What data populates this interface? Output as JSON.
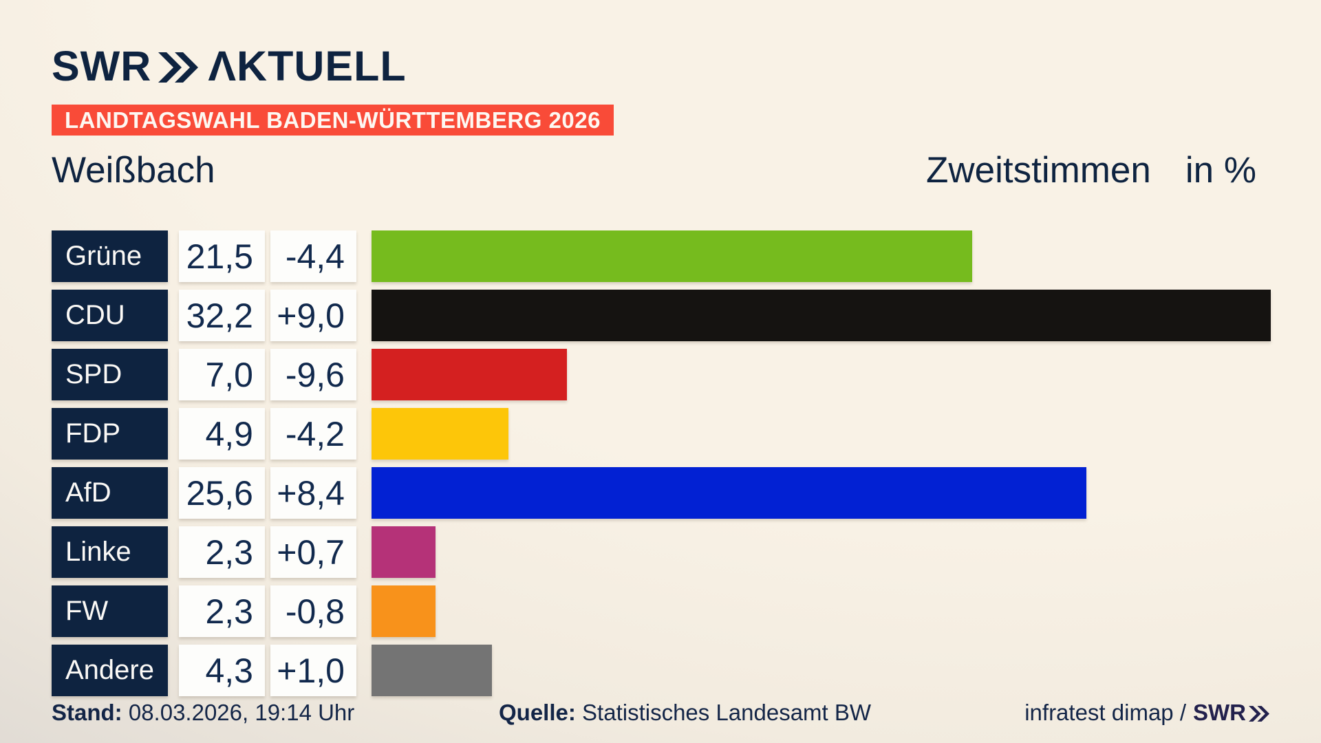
{
  "header": {
    "logo_swr": "SWR",
    "logo_aktuell": "ΛKTUELL",
    "badge": "LANDTAGSWAHL BADEN-WÜRTTEMBERG 2026",
    "location": "Weißbach",
    "chart_title": "Zweitstimmen",
    "chart_unit": "in %"
  },
  "chart_data": {
    "type": "bar",
    "orientation": "horizontal",
    "title": "Zweitstimmen",
    "unit": "in %",
    "categories": [
      "Grüne",
      "CDU",
      "SPD",
      "FDP",
      "AfD",
      "Linke",
      "FW",
      "Andere"
    ],
    "values": [
      21.5,
      32.2,
      7.0,
      4.9,
      25.6,
      2.3,
      2.3,
      4.3
    ],
    "value_labels": [
      "21,5",
      "32,2",
      "7,0",
      "4,9",
      "25,6",
      "2,3",
      "2,3",
      "4,3"
    ],
    "changes": [
      -4.4,
      9.0,
      -9.6,
      -4.2,
      8.4,
      0.7,
      -0.8,
      1.0
    ],
    "change_labels": [
      "-4,4",
      "+9,0",
      "-9,6",
      "-4,2",
      "+8,4",
      "+0,7",
      "-0,8",
      "+1,0"
    ],
    "bar_colors": [
      "#76bb1e",
      "#151311",
      "#d42020",
      "#fdc609",
      "#0221d3",
      "#b53278",
      "#f8921b",
      "#747474"
    ],
    "xlim": [
      0,
      32.2
    ],
    "value_axis_hidden": true,
    "legend": "none",
    "grid": false
  },
  "footer": {
    "stand_label": "Stand:",
    "stand_value": "08.03.2026, 19:14 Uhr",
    "quelle_label": "Quelle:",
    "quelle_value": "Statistisches Landesamt BW",
    "credit_text": "infratest dimap /",
    "credit_logo": "SWR"
  },
  "colors": {
    "navy": "#0e2340",
    "badge_red": "#f94b38",
    "box_white": "#fdfdfb",
    "background_cream": "#f9f2e6",
    "background_gray": "#d0cdc9"
  }
}
